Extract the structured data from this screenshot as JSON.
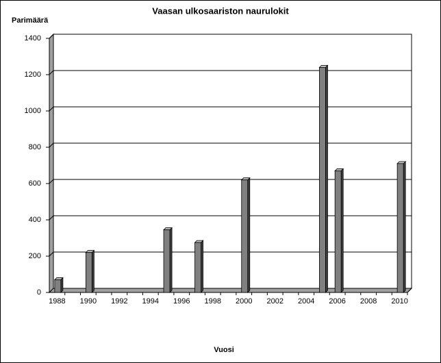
{
  "chart_data": {
    "type": "bar",
    "title": "Vaasan ulkosaariston naurulokit",
    "y_label": "Parimäärä",
    "x_label": "Vuosi",
    "categories": [
      "1988",
      null,
      "1990",
      null,
      "1992",
      null,
      "1994",
      null,
      "1996",
      null,
      "1998",
      null,
      "2000",
      null,
      "2002",
      null,
      "2004",
      null,
      "2006",
      null,
      "2008",
      null,
      "2010"
    ],
    "values": [
      70,
      null,
      220,
      null,
      null,
      null,
      null,
      345,
      null,
      275,
      null,
      null,
      620,
      null,
      null,
      null,
      null,
      1240,
      670,
      null,
      null,
      null,
      710
    ],
    "color": "#808080",
    "ylim": [
      0,
      1400
    ],
    "yticks": [
      0,
      200,
      400,
      600,
      800,
      1000,
      1200,
      1400
    ],
    "grid": true
  }
}
